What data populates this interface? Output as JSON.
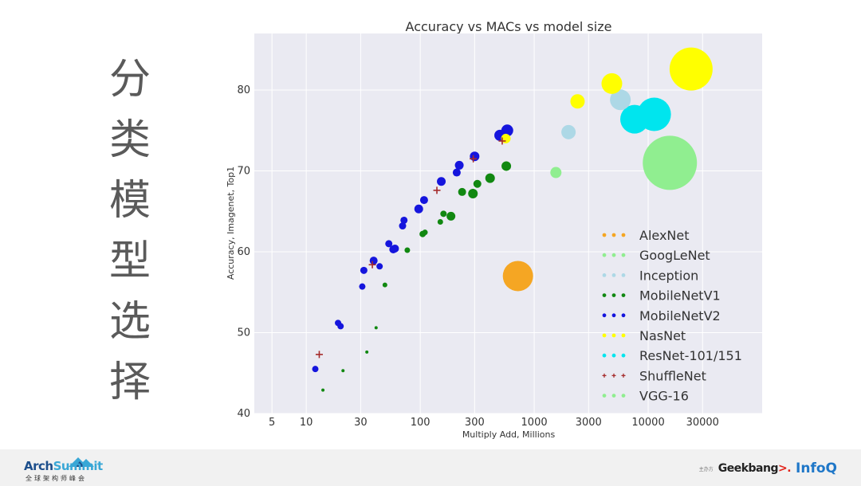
{
  "slide": {
    "title": "分类模型选择"
  },
  "chart_data": {
    "type": "scatter",
    "title": "Accuracy vs MACs vs model size",
    "xlabel": "Multiply Add, Millions",
    "ylabel": "Accuracy, Imagenet, Top1",
    "xscale": "log",
    "xlim": [
      3.5,
      100000
    ],
    "ylim": [
      40,
      87
    ],
    "xticks": [
      5,
      10,
      30,
      100,
      300,
      1000,
      3000,
      10000,
      30000
    ],
    "xtick_labels": [
      "5",
      "10",
      "30",
      "100",
      "300",
      "1000",
      "3000",
      "10000",
      "30000"
    ],
    "yticks": [
      40,
      50,
      60,
      70,
      80
    ],
    "yticks_labels": [
      "40",
      "50",
      "60",
      "70",
      "80"
    ],
    "grid": true,
    "legend_position": "bottom-right",
    "size_note": "marker size proportional to model size",
    "series": [
      {
        "name": "AlexNet",
        "color": "#f5a623",
        "marker": "circle",
        "points": [
          {
            "x": 720,
            "y": 57.0,
            "size": 19
          }
        ]
      },
      {
        "name": "GoogLeNet",
        "color": "#90ee90",
        "marker": "circle",
        "points": [
          {
            "x": 1550,
            "y": 69.8,
            "size": 7
          }
        ]
      },
      {
        "name": "Inception",
        "color": "#add8e6",
        "marker": "circle",
        "points": [
          {
            "x": 2000,
            "y": 74.8,
            "size": 9
          },
          {
            "x": 5700,
            "y": 78.8,
            "size": 13
          }
        ]
      },
      {
        "name": "MobileNetV1",
        "color": "#118811",
        "marker": "circle",
        "points": [
          {
            "x": 14,
            "y": 42.9,
            "size": 2
          },
          {
            "x": 21,
            "y": 45.3,
            "size": 2
          },
          {
            "x": 34,
            "y": 47.6,
            "size": 2
          },
          {
            "x": 41,
            "y": 50.6,
            "size": 2
          },
          {
            "x": 49,
            "y": 55.9,
            "size": 3
          },
          {
            "x": 77,
            "y": 60.2,
            "size": 3.5
          },
          {
            "x": 105,
            "y": 62.2,
            "size": 4
          },
          {
            "x": 110,
            "y": 62.4,
            "size": 3.5
          },
          {
            "x": 150,
            "y": 63.7,
            "size": 3.5
          },
          {
            "x": 160,
            "y": 64.7,
            "size": 4
          },
          {
            "x": 186,
            "y": 64.4,
            "size": 5.5
          },
          {
            "x": 233,
            "y": 67.4,
            "size": 5
          },
          {
            "x": 290,
            "y": 67.2,
            "size": 6
          },
          {
            "x": 317,
            "y": 68.4,
            "size": 5
          },
          {
            "x": 410,
            "y": 69.1,
            "size": 6
          },
          {
            "x": 569,
            "y": 70.6,
            "size": 6
          }
        ]
      },
      {
        "name": "MobileNetV2",
        "color": "#1515dd",
        "marker": "circle",
        "points": [
          {
            "x": 12,
            "y": 45.5,
            "size": 4
          },
          {
            "x": 19,
            "y": 51.2,
            "size": 4
          },
          {
            "x": 20,
            "y": 50.8,
            "size": 4
          },
          {
            "x": 31,
            "y": 55.7,
            "size": 4
          },
          {
            "x": 32,
            "y": 57.7,
            "size": 4.5
          },
          {
            "x": 39,
            "y": 58.9,
            "size": 5
          },
          {
            "x": 44,
            "y": 58.2,
            "size": 4
          },
          {
            "x": 53,
            "y": 61.0,
            "size": 4.5
          },
          {
            "x": 58,
            "y": 60.3,
            "size": 5
          },
          {
            "x": 60,
            "y": 60.4,
            "size": 5
          },
          {
            "x": 70,
            "y": 63.2,
            "size": 4.5
          },
          {
            "x": 72,
            "y": 63.9,
            "size": 4.5
          },
          {
            "x": 97,
            "y": 65.3,
            "size": 5.5
          },
          {
            "x": 108,
            "y": 66.4,
            "size": 5
          },
          {
            "x": 153,
            "y": 68.7,
            "size": 5.5
          },
          {
            "x": 209,
            "y": 69.8,
            "size": 5
          },
          {
            "x": 220,
            "y": 70.7,
            "size": 5.5
          },
          {
            "x": 300,
            "y": 71.8,
            "size": 6
          },
          {
            "x": 500,
            "y": 74.4,
            "size": 7
          },
          {
            "x": 580,
            "y": 75.0,
            "size": 7.5
          }
        ]
      },
      {
        "name": "NasNet",
        "color": "#ffff00",
        "marker": "circle",
        "points": [
          {
            "x": 564,
            "y": 74.0,
            "size": 6
          },
          {
            "x": 2400,
            "y": 78.6,
            "size": 9
          },
          {
            "x": 4800,
            "y": 80.8,
            "size": 13
          },
          {
            "x": 23800,
            "y": 82.6,
            "size": 27
          }
        ]
      },
      {
        "name": "ResNet-101/151",
        "color": "#00e5ee",
        "marker": "circle",
        "points": [
          {
            "x": 7600,
            "y": 76.4,
            "size": 18
          },
          {
            "x": 11300,
            "y": 77.0,
            "size": 21
          }
        ]
      },
      {
        "name": "ShuffleNet",
        "color": "#a52a2a",
        "marker": "plus",
        "points": [
          {
            "x": 13,
            "y": 47.3
          },
          {
            "x": 38,
            "y": 58.4
          },
          {
            "x": 140,
            "y": 67.6
          },
          {
            "x": 292,
            "y": 71.5
          },
          {
            "x": 524,
            "y": 73.7
          }
        ]
      },
      {
        "name": "VGG-16",
        "color": "#90ee90",
        "marker": "circle",
        "points": [
          {
            "x": 15500,
            "y": 71.0,
            "size": 34
          }
        ]
      }
    ]
  },
  "footer": {
    "brand_name_1": "Arch",
    "brand_name_2": "Summit",
    "brand_sub": "全球架构师峰会",
    "host_label": "主办方",
    "geekbang": "Geekbang",
    "geekbang_mark": ">.",
    "infoq": "InfoQ"
  }
}
